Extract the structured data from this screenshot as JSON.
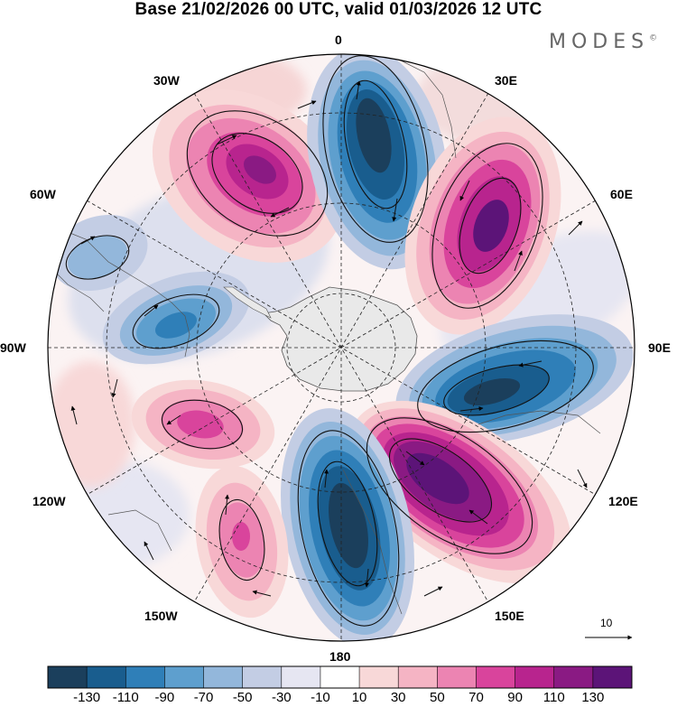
{
  "title": "Base 21/02/2026 00 UTC, valid 01/03/2026 12 UTC",
  "brand": "MODES",
  "brand_mark": "©",
  "longitude_labels": {
    "lon_0": "0",
    "lon_30e": "30E",
    "lon_60e": "60E",
    "lon_90e": "90E",
    "lon_120e": "120E",
    "lon_150e": "150E",
    "lon_180": "180",
    "lon_150w": "150W",
    "lon_120w": "120W",
    "lon_90w": "90W",
    "lon_60w": "60W",
    "lon_30w": "30W"
  },
  "vector_reference": {
    "label": "10"
  },
  "colorbar": {
    "colors": [
      "#1b3f5c",
      "#195d8e",
      "#2f7fb8",
      "#5e9fce",
      "#93b7db",
      "#c3cde4",
      "#e6e6f2",
      "#ffffff",
      "#f8d8d8",
      "#f5b4c4",
      "#ec84b2",
      "#d9449c",
      "#b8248e",
      "#8a1a83",
      "#5c1478"
    ],
    "labels": [
      "-130",
      "-110",
      "-90",
      "-70",
      "-50",
      "-30",
      "-10",
      "10",
      "30",
      "50",
      "70",
      "90",
      "110",
      "130"
    ]
  },
  "map_colors": {
    "land_fill": "#e9e9e9",
    "border": "#000000"
  }
}
